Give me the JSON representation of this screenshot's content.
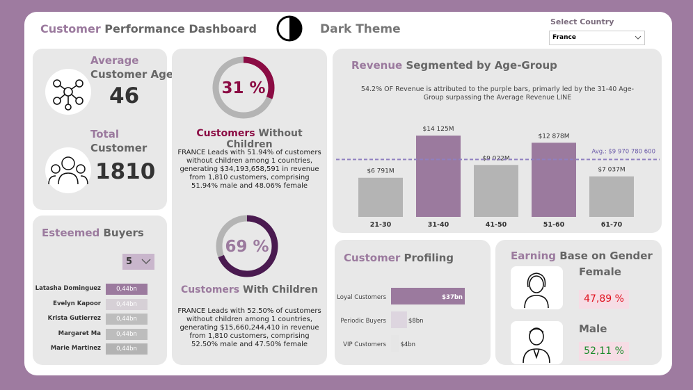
{
  "header": {
    "title": {
      "accent": "Customer",
      "rest": "Performance Dashboard"
    },
    "theme_label": "Dark Theme",
    "country_filter": {
      "label": "Select Country",
      "selected": "France"
    }
  },
  "age_card": {
    "age_title": {
      "accent": "Average",
      "rest": "Customer Age"
    },
    "age_value": 46,
    "total_title": {
      "accent": "Total",
      "rest": "Customer"
    },
    "total_value": 1810
  },
  "buyers": {
    "title": {
      "accent": "Esteemed",
      "rest": "Buyers"
    },
    "top_n": 5,
    "names": [
      "Latasha Dominguez",
      "Evelyn Kapoor",
      "Krista Gutierrez",
      "Margaret Ma",
      "Marie Martinez"
    ],
    "values": [
      0.44,
      0.44,
      0.44,
      0.44,
      0.44
    ],
    "value_labels": [
      "0,44bn",
      "0,44bn",
      "0,44bn",
      "0,44bn",
      "0,44bn"
    ],
    "colors": [
      "#9b7a9e",
      "#d6d0d6",
      "#bdbdbd",
      "#bdbdbd",
      "#b3b3b3"
    ]
  },
  "children": {
    "without": {
      "value": 31,
      "value_label": "31 %",
      "color": "#8b0c44",
      "title": {
        "accent": "Customers",
        "rest": "Without Children"
      },
      "text": "FRANCE Leads with 51.94% of customers without children among 1 countries, generating $34,193,658,591 in revenue from 1,810 customers, comprising 51.94% male and 48.06% female"
    },
    "with": {
      "value": 69,
      "value_label": "69 %",
      "color": "#4a1a50",
      "title": {
        "accent": "Customers",
        "rest": "With Children"
      },
      "text": "FRANCE Leads with 52.50% of customers without children among 1 countries, generating $15,660,244,410 in revenue from 1,810 customers, comprising 52.50% male and 47.50% female"
    }
  },
  "revenue_chart": {
    "type": "bar",
    "title": {
      "accent": "Revenue",
      "rest": "Segmented by Age-Group"
    },
    "subtitle": "54.2% OF Revenue is attributed to the purple bars, primarly led by the 31-40 Age-Group surpassing the Average Revenue LINE",
    "categories": [
      "21-30",
      "31-40",
      "41-50",
      "51-60",
      "61-70"
    ],
    "values": [
      6791,
      14125,
      9022,
      12878,
      7037
    ],
    "value_labels": [
      "$6 791M",
      "$14 125M",
      "$9 022M",
      "$12 878M",
      "$7 037M"
    ],
    "colors": [
      "#b4b4b4",
      "#9b7a9e",
      "#b4b4b4",
      "#9b7a9e",
      "#b4b4b4"
    ],
    "average": {
      "value": 9970.7806,
      "label": "Avg.: $9 970 780 600"
    }
  },
  "profiling": {
    "title": {
      "accent": "Customer",
      "rest": "Profiling"
    },
    "categories": [
      "Loyal Customers",
      "Periodic Buyers",
      "VIP Customers"
    ],
    "values": [
      37,
      8,
      4
    ],
    "value_labels": [
      "$37bn",
      "$8bn",
      "$4bn"
    ],
    "colors": [
      "#9b7a9e",
      "#ddd5df",
      "#e6e6e6"
    ]
  },
  "gender": {
    "title": {
      "accent": "Earning",
      "rest": "Base on Gender"
    },
    "female": {
      "label": "Female",
      "value": 47.89,
      "value_label": "47,89 %"
    },
    "male": {
      "label": "Male",
      "value": 52.11,
      "value_label": "52,11 %"
    }
  }
}
